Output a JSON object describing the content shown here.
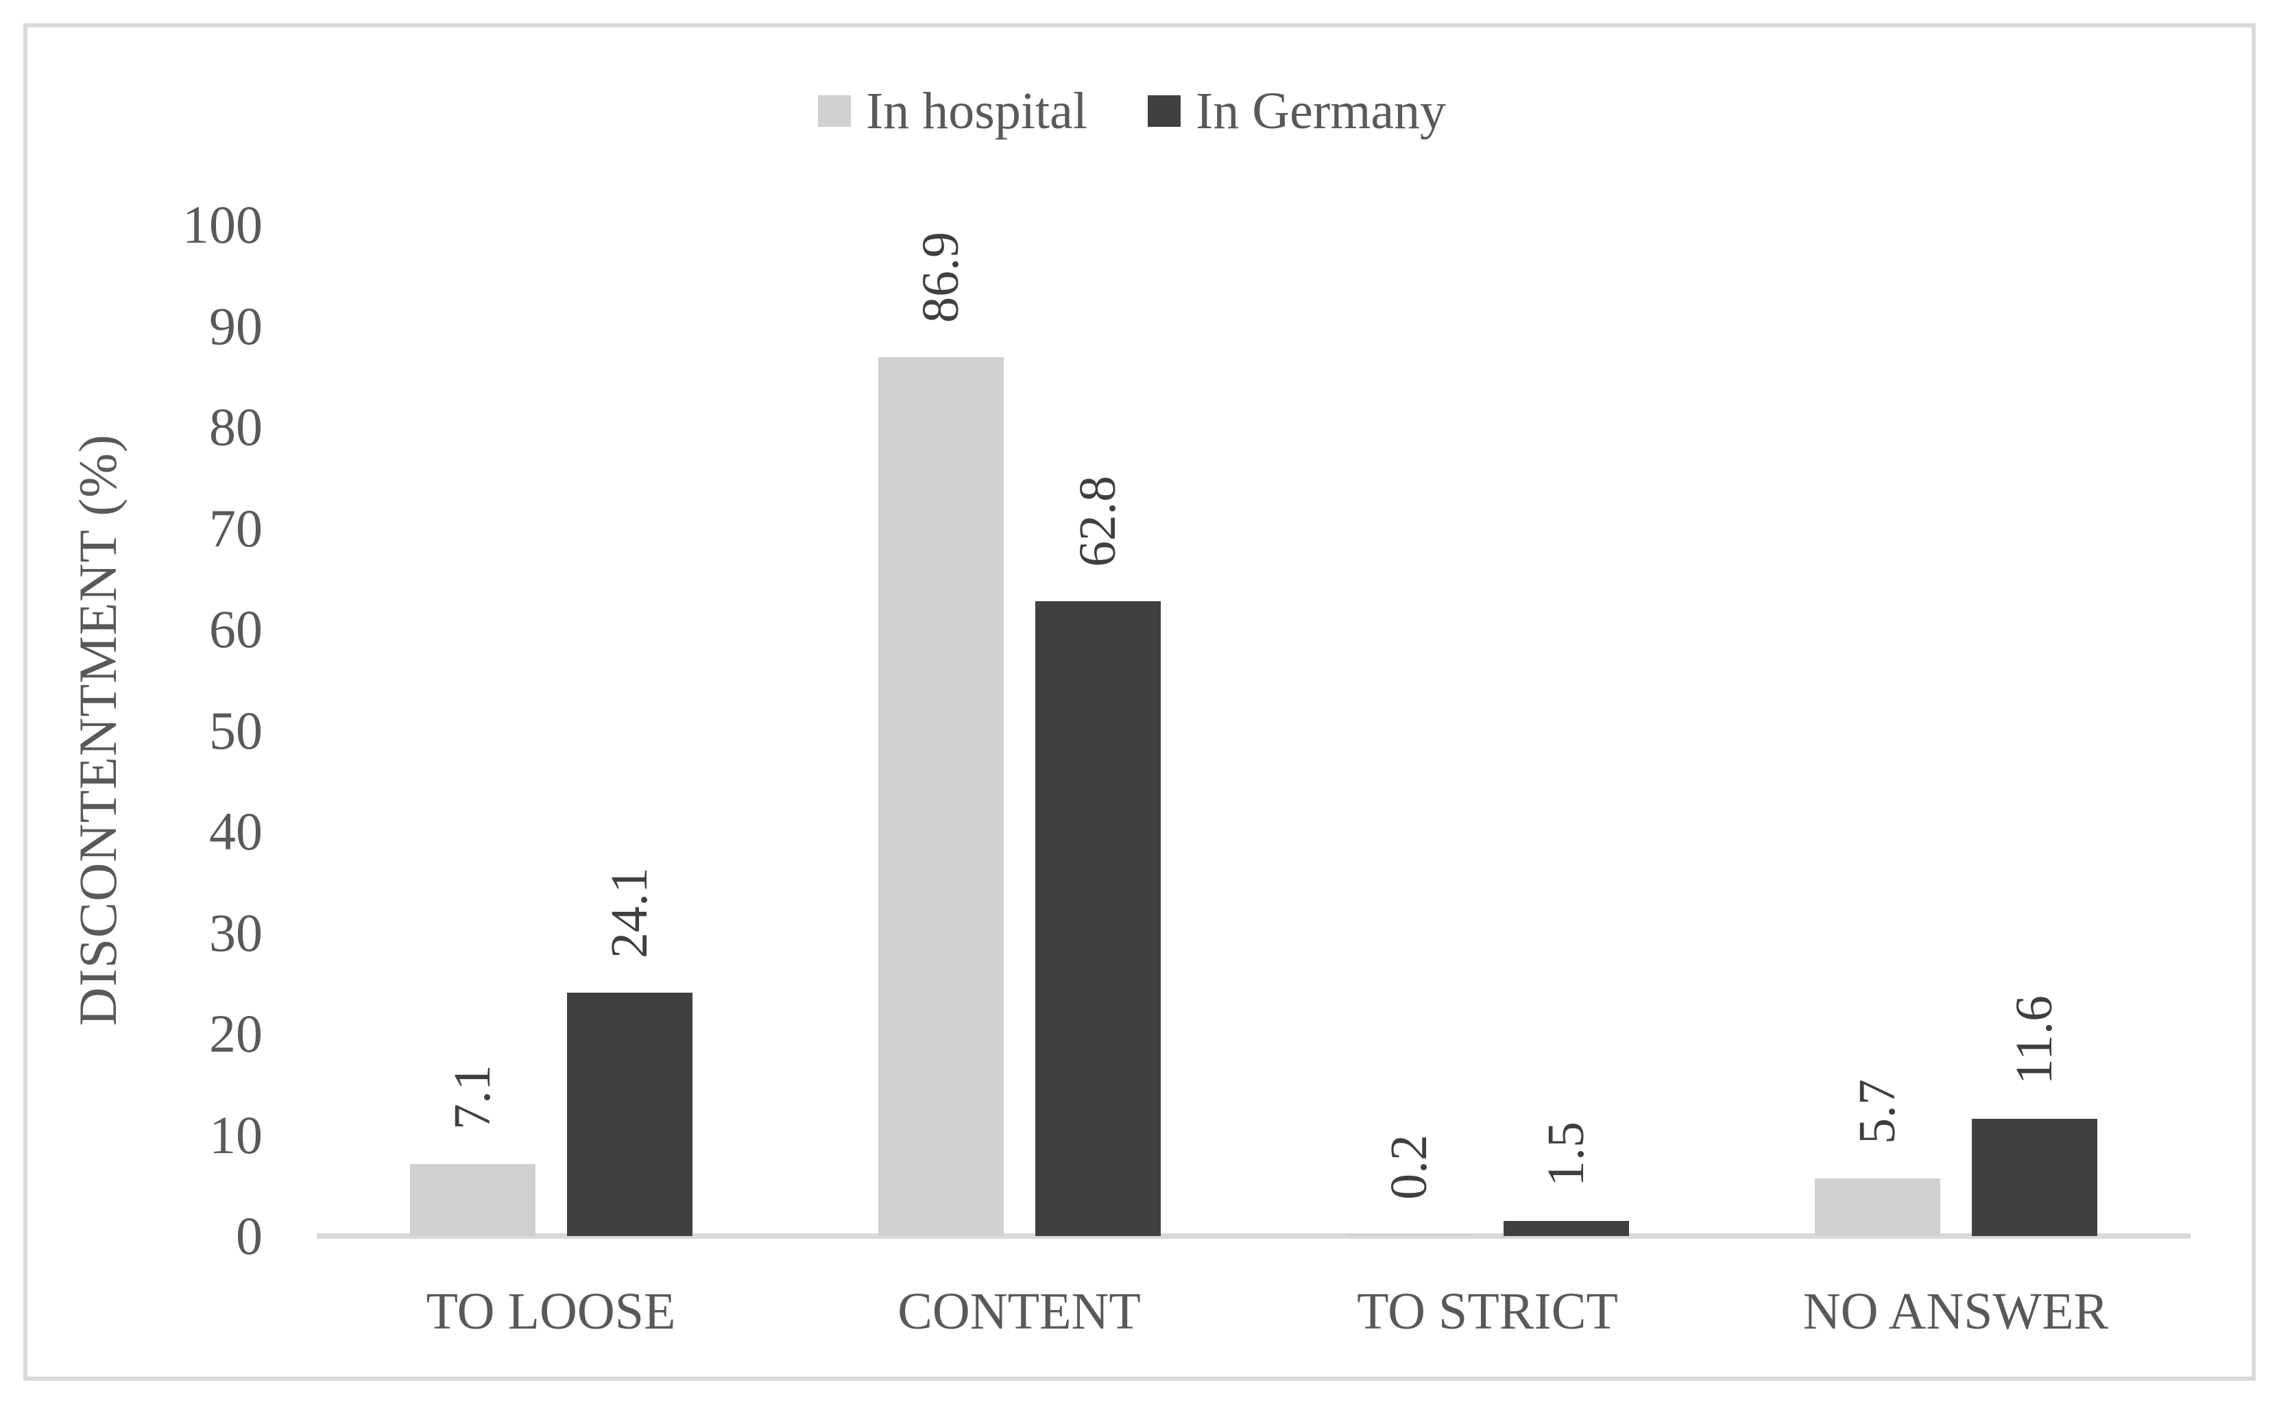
{
  "chart_data": {
    "type": "bar",
    "title": "",
    "categories": [
      "TO LOOSE",
      "CONTENT",
      "TO STRICT",
      "NO ANSWER"
    ],
    "series": [
      {
        "name": "In hospital",
        "color": "#d0d0d0",
        "values": [
          7.1,
          86.9,
          0.2,
          5.7
        ]
      },
      {
        "name": "In Germany",
        "color": "#404040",
        "values": [
          24.1,
          62.8,
          1.5,
          11.6
        ]
      }
    ],
    "xlabel": "",
    "ylabel": "DISCONTENTMENT (%)",
    "ylim": [
      0,
      100
    ],
    "yticks": [
      0,
      10,
      20,
      30,
      40,
      50,
      60,
      70,
      80,
      90,
      100
    ],
    "grid": false,
    "legend_position": "top-center",
    "data_labels": "rotated-90-above-bars",
    "colors": {
      "axis_line": "#d9d9d9",
      "frame_border": "#d9d9d9",
      "tick_text": "#595959",
      "data_label_text": "#3f3f3f",
      "background": "#ffffff"
    }
  }
}
